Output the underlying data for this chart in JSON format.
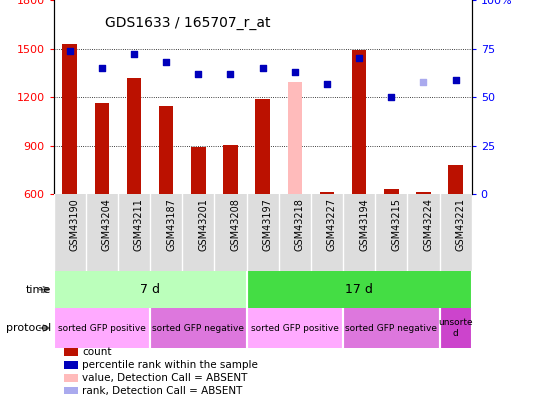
{
  "title": "GDS1633 / 165707_r_at",
  "samples": [
    "GSM43190",
    "GSM43204",
    "GSM43211",
    "GSM43187",
    "GSM43201",
    "GSM43208",
    "GSM43197",
    "GSM43218",
    "GSM43227",
    "GSM43194",
    "GSM43215",
    "GSM43224",
    "GSM43221"
  ],
  "counts": [
    1530,
    1165,
    1320,
    1145,
    895,
    905,
    1190,
    1295,
    615,
    1490,
    635,
    615,
    780
  ],
  "percentile_ranks": [
    74,
    65,
    72,
    68,
    62,
    62,
    65,
    63,
    57,
    70,
    50,
    58,
    59
  ],
  "absent_flags": [
    false,
    false,
    false,
    false,
    false,
    false,
    false,
    true,
    false,
    false,
    false,
    false,
    false
  ],
  "absent_rank_flags": [
    false,
    false,
    false,
    false,
    false,
    false,
    false,
    false,
    false,
    false,
    false,
    true,
    false
  ],
  "ylim_left": [
    600,
    1800
  ],
  "ylim_right": [
    0,
    100
  ],
  "yticks_left": [
    600,
    900,
    1200,
    1500,
    1800
  ],
  "yticks_right": [
    0,
    25,
    50,
    75,
    100
  ],
  "bar_color_normal": "#bb1100",
  "bar_color_absent": "#ffbbbb",
  "dot_color_normal": "#0000bb",
  "dot_color_absent": "#aaaaee",
  "time_groups": [
    {
      "label": "7 d",
      "start": 0,
      "end": 6,
      "color": "#bbffbb"
    },
    {
      "label": "17 d",
      "start": 6,
      "end": 13,
      "color": "#44dd44"
    }
  ],
  "protocol_groups": [
    {
      "label": "sorted GFP positive",
      "start": 0,
      "end": 3,
      "color": "#ffaaff"
    },
    {
      "label": "sorted GFP negative",
      "start": 3,
      "end": 6,
      "color": "#dd77dd"
    },
    {
      "label": "sorted GFP positive",
      "start": 6,
      "end": 9,
      "color": "#ffaaff"
    },
    {
      "label": "sorted GFP negative",
      "start": 9,
      "end": 12,
      "color": "#dd77dd"
    },
    {
      "label": "unsorte\nd",
      "start": 12,
      "end": 13,
      "color": "#cc44cc"
    }
  ],
  "bar_width": 0.45,
  "tick_label_bg": "#dddddd",
  "plot_bg": "white"
}
